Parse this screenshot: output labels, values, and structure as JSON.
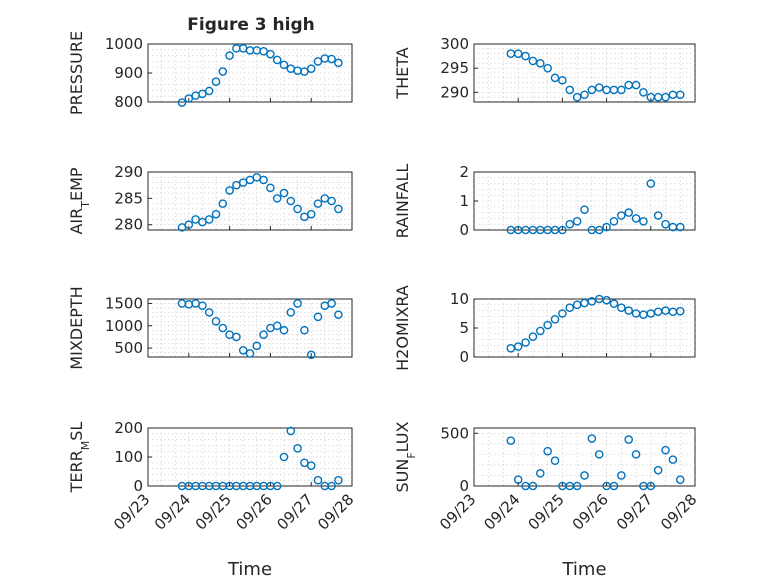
{
  "figure": {
    "title": "Figure 3 high"
  },
  "chart_data": [
    {
      "type": "scatter",
      "ylabel": "PRESSURE",
      "title": "Figure 3 high",
      "xlabel": "",
      "xlim": [
        "09/23",
        "09/28"
      ],
      "ylim": [
        800,
        1000
      ],
      "yticks": [
        "800",
        "900",
        "1000"
      ],
      "grid": true,
      "x": [
        "09/23 20:00",
        "09/24 00:00",
        "09/24 04:00",
        "09/24 08:00",
        "09/24 12:00",
        "09/24 16:00",
        "09/24 20:00",
        "09/25 00:00",
        "09/25 04:00",
        "09/25 08:00",
        "09/25 12:00",
        "09/25 16:00",
        "09/25 20:00",
        "09/26 00:00",
        "09/26 04:00",
        "09/26 08:00",
        "09/26 12:00",
        "09/26 16:00",
        "09/26 20:00",
        "09/27 00:00",
        "09/27 04:00",
        "09/27 08:00",
        "09/27 12:00",
        "09/27 16:00"
      ],
      "y": [
        798,
        812,
        822,
        828,
        838,
        870,
        905,
        960,
        985,
        985,
        978,
        978,
        975,
        965,
        945,
        928,
        915,
        908,
        905,
        915,
        940,
        950,
        948,
        935
      ]
    },
    {
      "type": "scatter",
      "ylabel": "THETA",
      "title": "",
      "xlabel": "",
      "xlim": [
        "09/23",
        "09/28"
      ],
      "ylim": [
        288,
        300
      ],
      "yticks": [
        "290",
        "295",
        "300"
      ],
      "grid": true,
      "x": [
        "09/23 20:00",
        "09/24 00:00",
        "09/24 04:00",
        "09/24 08:00",
        "09/24 12:00",
        "09/24 16:00",
        "09/24 20:00",
        "09/25 00:00",
        "09/25 04:00",
        "09/25 08:00",
        "09/25 12:00",
        "09/25 16:00",
        "09/25 20:00",
        "09/26 00:00",
        "09/26 04:00",
        "09/26 08:00",
        "09/26 12:00",
        "09/26 16:00",
        "09/26 20:00",
        "09/27 00:00",
        "09/27 04:00",
        "09/27 08:00",
        "09/27 12:00",
        "09/27 16:00"
      ],
      "y": [
        298,
        298,
        297.5,
        296.5,
        296,
        295,
        293,
        292.5,
        290.5,
        289,
        289.5,
        290.5,
        291,
        290.5,
        290.5,
        290.5,
        291.5,
        291.5,
        290,
        289,
        289,
        289,
        289.5,
        289.5
      ]
    },
    {
      "type": "scatter",
      "ylabel": "AIR_TEMP",
      "title": "",
      "xlabel": "",
      "xlim": [
        "09/23",
        "09/28"
      ],
      "ylim": [
        279,
        290
      ],
      "yticks": [
        "280",
        "285",
        "290"
      ],
      "grid": true,
      "x": [
        "09/23 20:00",
        "09/24 00:00",
        "09/24 04:00",
        "09/24 08:00",
        "09/24 12:00",
        "09/24 16:00",
        "09/24 20:00",
        "09/25 00:00",
        "09/25 04:00",
        "09/25 08:00",
        "09/25 12:00",
        "09/25 16:00",
        "09/25 20:00",
        "09/26 00:00",
        "09/26 04:00",
        "09/26 08:00",
        "09/26 12:00",
        "09/26 16:00",
        "09/26 20:00",
        "09/27 00:00",
        "09/27 04:00",
        "09/27 08:00",
        "09/27 12:00",
        "09/27 16:00"
      ],
      "y": [
        279.5,
        280,
        281,
        280.5,
        281,
        282,
        284,
        286.5,
        287.5,
        288,
        288.5,
        289,
        288.5,
        287,
        285,
        286,
        284.5,
        283,
        281.5,
        282,
        284,
        285,
        284.5,
        283
      ]
    },
    {
      "type": "scatter",
      "ylabel": "RAINFALL",
      "title": "",
      "xlabel": "",
      "xlim": [
        "09/23",
        "09/28"
      ],
      "ylim": [
        0,
        2
      ],
      "yticks": [
        "0",
        "1",
        "2"
      ],
      "grid": true,
      "x": [
        "09/23 20:00",
        "09/24 00:00",
        "09/24 04:00",
        "09/24 08:00",
        "09/24 12:00",
        "09/24 16:00",
        "09/24 20:00",
        "09/25 00:00",
        "09/25 04:00",
        "09/25 08:00",
        "09/25 12:00",
        "09/25 16:00",
        "09/25 20:00",
        "09/26 00:00",
        "09/26 04:00",
        "09/26 08:00",
        "09/26 12:00",
        "09/26 16:00",
        "09/26 20:00",
        "09/27 00:00",
        "09/27 04:00",
        "09/27 08:00",
        "09/27 12:00",
        "09/27 16:00"
      ],
      "y": [
        0,
        0,
        0,
        0,
        0,
        0,
        0,
        0,
        0.2,
        0.3,
        0.7,
        0,
        0,
        0.1,
        0.3,
        0.5,
        0.6,
        0.4,
        0.3,
        1.6,
        0.5,
        0.2,
        0.1,
        0.1
      ]
    },
    {
      "type": "scatter",
      "ylabel": "MIXDEPTH",
      "title": "",
      "xlabel": "",
      "xlim": [
        "09/23",
        "09/28"
      ],
      "ylim": [
        300,
        1600
      ],
      "yticks": [
        "500",
        "1000",
        "1500"
      ],
      "grid": true,
      "x": [
        "09/23 20:00",
        "09/24 00:00",
        "09/24 04:00",
        "09/24 08:00",
        "09/24 12:00",
        "09/24 16:00",
        "09/24 20:00",
        "09/25 00:00",
        "09/25 04:00",
        "09/25 08:00",
        "09/25 12:00",
        "09/25 16:00",
        "09/25 20:00",
        "09/26 00:00",
        "09/26 04:00",
        "09/26 08:00",
        "09/26 12:00",
        "09/26 16:00",
        "09/26 20:00",
        "09/27 00:00",
        "09/27 04:00",
        "09/27 08:00",
        "09/27 12:00",
        "09/27 16:00"
      ],
      "y": [
        1500,
        1480,
        1500,
        1450,
        1300,
        1100,
        950,
        800,
        750,
        450,
        380,
        550,
        800,
        950,
        1000,
        900,
        1300,
        1500,
        900,
        350,
        1200,
        1450,
        1500,
        1250
      ]
    },
    {
      "type": "scatter",
      "ylabel": "H2OMIXRA",
      "title": "",
      "xlabel": "",
      "xlim": [
        "09/23",
        "09/28"
      ],
      "ylim": [
        0,
        10
      ],
      "yticks": [
        "0",
        "5",
        "10"
      ],
      "grid": true,
      "x": [
        "09/23 20:00",
        "09/24 00:00",
        "09/24 04:00",
        "09/24 08:00",
        "09/24 12:00",
        "09/24 16:00",
        "09/24 20:00",
        "09/25 00:00",
        "09/25 04:00",
        "09/25 08:00",
        "09/25 12:00",
        "09/25 16:00",
        "09/25 20:00",
        "09/26 00:00",
        "09/26 04:00",
        "09/26 08:00",
        "09/26 12:00",
        "09/26 16:00",
        "09/26 20:00",
        "09/27 00:00",
        "09/27 04:00",
        "09/27 08:00",
        "09/27 12:00",
        "09/27 16:00"
      ],
      "y": [
        1.5,
        1.8,
        2.5,
        3.5,
        4.5,
        5.5,
        6.5,
        7.5,
        8.5,
        9,
        9.3,
        9.6,
        10,
        9.8,
        9.2,
        8.5,
        8,
        7.5,
        7.3,
        7.5,
        7.8,
        8,
        7.8,
        7.9
      ]
    },
    {
      "type": "scatter",
      "ylabel": "TERR_MSL",
      "title": "",
      "xlabel": "Time",
      "xlim": [
        "09/23",
        "09/28"
      ],
      "ylim": [
        0,
        200
      ],
      "yticks": [
        "0",
        "100",
        "200"
      ],
      "xticks": [
        "09/23",
        "09/24",
        "09/25",
        "09/26",
        "09/27",
        "09/28"
      ],
      "grid": true,
      "x": [
        "09/23 20:00",
        "09/24 00:00",
        "09/24 04:00",
        "09/24 08:00",
        "09/24 12:00",
        "09/24 16:00",
        "09/24 20:00",
        "09/25 00:00",
        "09/25 04:00",
        "09/25 08:00",
        "09/25 12:00",
        "09/25 16:00",
        "09/25 20:00",
        "09/26 00:00",
        "09/26 04:00",
        "09/26 08:00",
        "09/26 12:00",
        "09/26 16:00",
        "09/26 20:00",
        "09/27 00:00",
        "09/27 04:00",
        "09/27 08:00",
        "09/27 12:00",
        "09/27 16:00"
      ],
      "y": [
        0,
        0,
        0,
        0,
        0,
        0,
        0,
        0,
        0,
        0,
        0,
        0,
        0,
        0,
        0,
        100,
        190,
        130,
        80,
        70,
        20,
        0,
        0,
        20
      ]
    },
    {
      "type": "scatter",
      "ylabel": "SUN_FLUX",
      "title": "",
      "xlabel": "Time",
      "xlim": [
        "09/23",
        "09/28"
      ],
      "ylim": [
        0,
        550
      ],
      "yticks": [
        "0",
        "500"
      ],
      "xticks": [
        "09/23",
        "09/24",
        "09/25",
        "09/26",
        "09/27",
        "09/28"
      ],
      "grid": true,
      "x": [
        "09/23 20:00",
        "09/24 00:00",
        "09/24 04:00",
        "09/24 08:00",
        "09/24 12:00",
        "09/24 16:00",
        "09/24 20:00",
        "09/25 00:00",
        "09/25 04:00",
        "09/25 08:00",
        "09/25 12:00",
        "09/25 16:00",
        "09/25 20:00",
        "09/26 00:00",
        "09/26 04:00",
        "09/26 08:00",
        "09/26 12:00",
        "09/26 16:00",
        "09/26 20:00",
        "09/27 00:00",
        "09/27 04:00",
        "09/27 08:00",
        "09/27 12:00",
        "09/27 16:00"
      ],
      "y": [
        430,
        60,
        0,
        0,
        120,
        330,
        240,
        0,
        0,
        0,
        100,
        450,
        300,
        0,
        0,
        100,
        440,
        300,
        0,
        0,
        150,
        340,
        250,
        60
      ]
    }
  ]
}
